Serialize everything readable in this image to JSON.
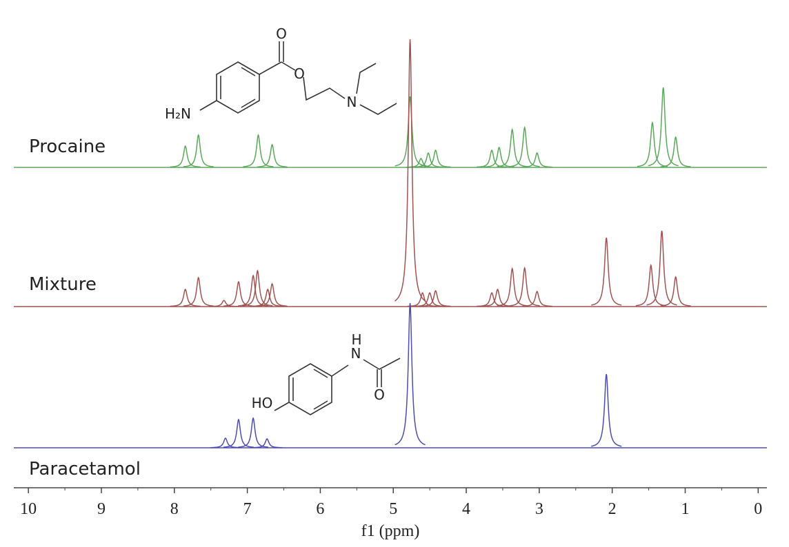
{
  "chart_data": {
    "type": "nmr",
    "xlabel": "f1 (ppm)",
    "xlim": [
      10.2,
      -0.12
    ],
    "xticks": [
      10,
      9,
      8,
      7,
      6,
      5,
      4,
      3,
      2,
      1,
      0
    ],
    "xminor_ticks": [
      9.5,
      8.5,
      7.5,
      6.5,
      5.5,
      4.5,
      3.5,
      2.5,
      1.5,
      0.5
    ],
    "series": [
      {
        "name": "Procaine",
        "color": "#5aa85a",
        "x": [
          7.85,
          7.67,
          6.85,
          6.66,
          4.77,
          4.62,
          4.52,
          4.42,
          3.65,
          3.55,
          3.37,
          3.2,
          3.03,
          1.45,
          1.3,
          1.13
        ],
        "values": [
          31,
          47,
          47,
          33,
          103,
          13,
          21,
          25,
          25,
          29,
          55,
          58,
          21,
          65,
          116,
          44
        ]
      },
      {
        "name": "Mixture",
        "color": "#a0524f",
        "x": [
          7.85,
          7.67,
          7.32,
          7.12,
          6.92,
          6.86,
          6.72,
          6.66,
          4.77,
          4.6,
          4.5,
          4.42,
          3.65,
          3.57,
          3.37,
          3.2,
          3.03,
          2.08,
          1.47,
          1.32,
          1.13
        ],
        "values": [
          25,
          42,
          9,
          36,
          45,
          52,
          25,
          33,
          388,
          20,
          20,
          23,
          20,
          25,
          55,
          56,
          22,
          100,
          60,
          110,
          43
        ]
      },
      {
        "name": "Paracetamol",
        "color": "#4b4bb0",
        "x": [
          7.3,
          7.12,
          6.92,
          6.73,
          4.77,
          2.08
        ],
        "values": [
          14,
          41,
          43,
          13,
          210,
          107
        ]
      }
    ],
    "structures": {
      "procaine": [
        "O",
        "O",
        "N",
        "H₂N"
      ],
      "paracetamol": [
        "H",
        "N",
        "O",
        "HO"
      ]
    }
  }
}
